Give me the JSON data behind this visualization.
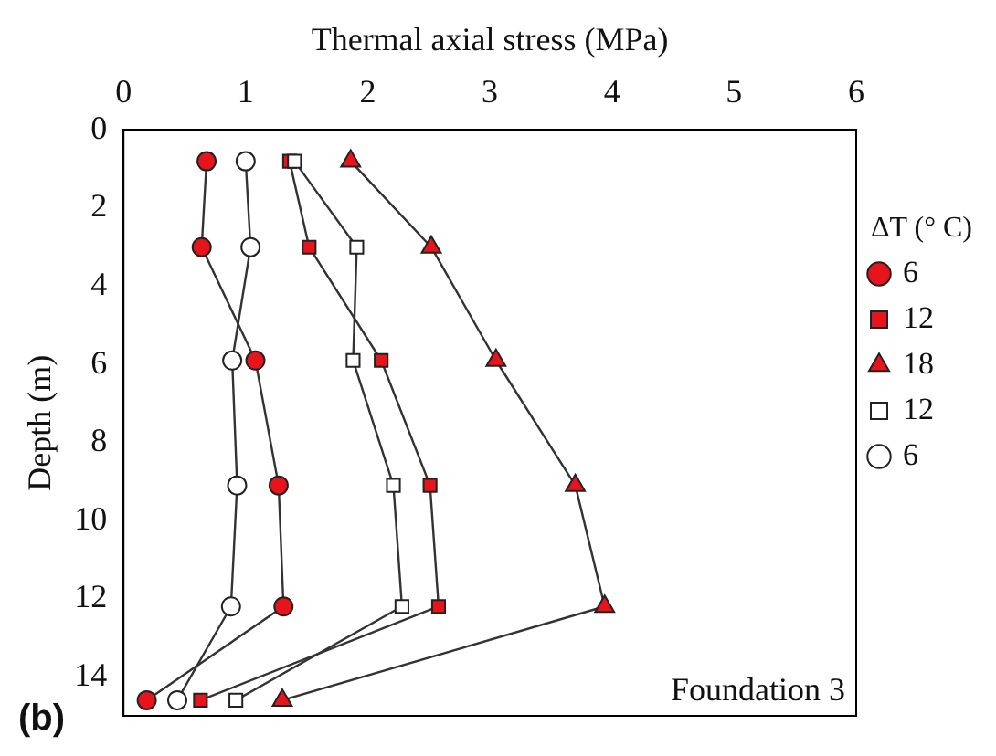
{
  "chart_data": {
    "type": "line",
    "xlabel": "Thermal axial stress (MPa)",
    "ylabel": "Depth (m)",
    "legend_title": "ΔT (° C)",
    "legend": "right",
    "xlim": [
      0,
      6
    ],
    "xticks": [
      0,
      1,
      2,
      3,
      4,
      5,
      6
    ],
    "ylim": [
      15,
      0
    ],
    "yticks": [
      0,
      2,
      4,
      6,
      8,
      10,
      12,
      14
    ],
    "grid": false,
    "annotations": [
      "Foundation 3",
      "(b)"
    ],
    "series": [
      {
        "name": "6",
        "color": "#e8141c",
        "marker": "circle",
        "x": [
          0.68,
          0.64,
          1.08,
          1.27,
          1.31,
          0.19
        ],
        "values": [
          0.8,
          3.0,
          5.9,
          9.1,
          12.2,
          14.6
        ]
      },
      {
        "name": "12",
        "color": "#e8141c",
        "marker": "square",
        "x": [
          1.36,
          1.52,
          2.11,
          2.51,
          2.58,
          0.63
        ],
        "values": [
          0.8,
          3.0,
          5.9,
          9.1,
          12.2,
          14.6
        ]
      },
      {
        "name": "18",
        "color": "#e8141c",
        "marker": "triangle",
        "x": [
          1.86,
          2.52,
          3.05,
          3.7,
          3.94,
          1.3
        ],
        "values": [
          0.8,
          3.0,
          5.9,
          9.1,
          12.2,
          14.6
        ]
      },
      {
        "name": "12",
        "color": "#ffffff",
        "marker": "square",
        "x": [
          1.4,
          1.91,
          1.88,
          2.21,
          2.28,
          0.92
        ],
        "values": [
          0.8,
          3.0,
          5.9,
          9.1,
          12.2,
          14.6
        ]
      },
      {
        "name": "6",
        "color": "#ffffff",
        "marker": "circle",
        "x": [
          1.0,
          1.04,
          0.89,
          0.93,
          0.88,
          0.44
        ],
        "values": [
          0.8,
          3.0,
          5.9,
          9.1,
          12.2,
          14.6
        ]
      }
    ]
  }
}
